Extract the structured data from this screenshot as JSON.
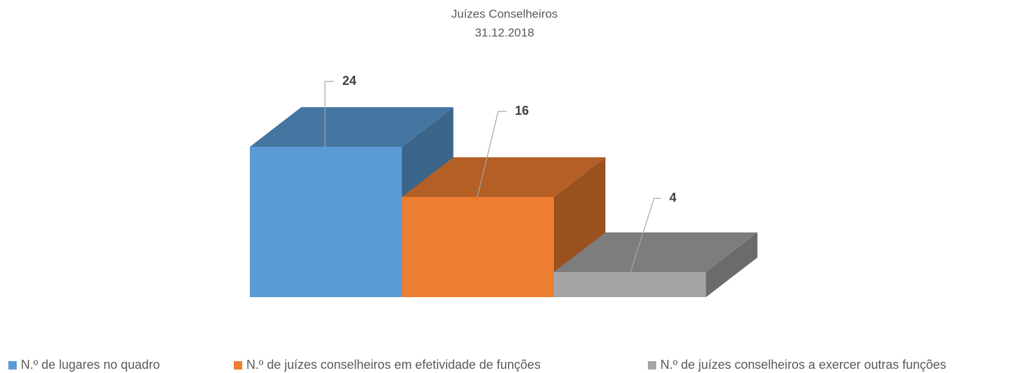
{
  "chart_data": {
    "type": "bar3d",
    "title": "Juízes Conselheiros",
    "subtitle": "31.12.2018",
    "series": [
      {
        "name": "N.º de lugares no quadro",
        "color": "#5b9bd5",
        "values": [
          24
        ]
      },
      {
        "name": "N.º de juízes conselheiros em efetividade de funções",
        "color": "#ed7d31",
        "values": [
          16
        ]
      },
      {
        "name": "N.º de juízes conselheiros a exercer outras funções",
        "color": "#a5a5a5",
        "values": [
          4
        ]
      }
    ],
    "legend": "bottom"
  }
}
